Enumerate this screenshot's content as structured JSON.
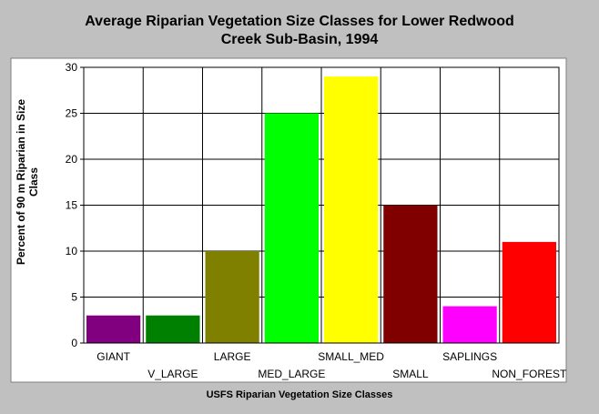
{
  "chart_data": {
    "type": "bar",
    "title_line1": "Average Riparian Vegetation Size Classes for Lower Redwood",
    "title_line2": "Creek Sub-Basin, 1994",
    "xlabel": "USFS Riparian Vegetation Size Classes",
    "ylabel": "Percent of 90 m Riparian in Size Class",
    "ylim": [
      0,
      30
    ],
    "yticks": [
      0,
      5,
      10,
      15,
      20,
      25,
      30
    ],
    "grid": true,
    "categories": [
      "GIANT",
      "V_LARGE",
      "LARGE",
      "MED_LARGE",
      "SMALL_MED",
      "SMALL",
      "SAPLINGS",
      "NON_FOREST"
    ],
    "values": [
      3,
      3,
      10,
      25,
      29,
      15,
      4,
      11
    ],
    "colors": [
      "#800080",
      "#008000",
      "#808000",
      "#00ff00",
      "#ffff00",
      "#800000",
      "#ff00ff",
      "#ff0000"
    ]
  }
}
